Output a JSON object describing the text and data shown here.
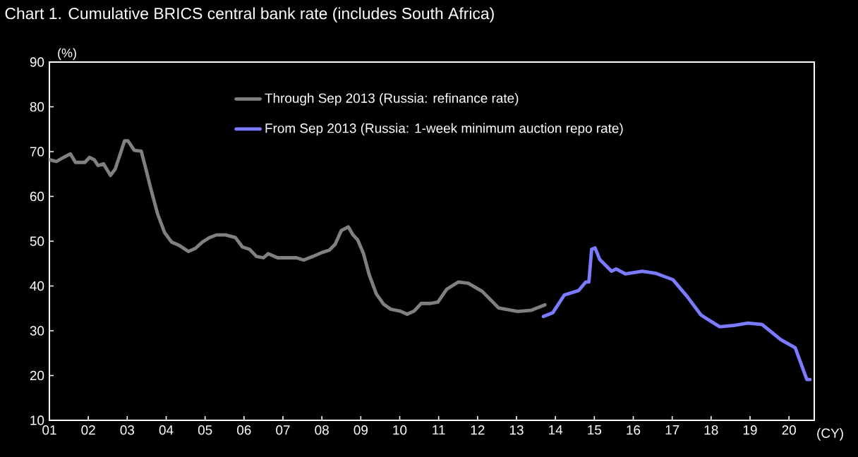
{
  "chart_data": {
    "type": "line",
    "title": "Chart 1. Cumulative BRICS central bank rate (includes South Africa)",
    "xlabel": "(CY)",
    "ylabel": "(%)",
    "xlim": [
      2001,
      2020.65
    ],
    "ylim": [
      10,
      90
    ],
    "xticks": [
      {
        "value": 2001,
        "label": "01"
      },
      {
        "value": 2002,
        "label": "02"
      },
      {
        "value": 2003,
        "label": "03"
      },
      {
        "value": 2004,
        "label": "04"
      },
      {
        "value": 2005,
        "label": "05"
      },
      {
        "value": 2006,
        "label": "06"
      },
      {
        "value": 2007,
        "label": "07"
      },
      {
        "value": 2008,
        "label": "08"
      },
      {
        "value": 2009,
        "label": "09"
      },
      {
        "value": 2010,
        "label": "10"
      },
      {
        "value": 2011,
        "label": "11"
      },
      {
        "value": 2012,
        "label": "12"
      },
      {
        "value": 2013,
        "label": "13"
      },
      {
        "value": 2014,
        "label": "14"
      },
      {
        "value": 2015,
        "label": "15"
      },
      {
        "value": 2016,
        "label": "16"
      },
      {
        "value": 2017,
        "label": "17"
      },
      {
        "value": 2018,
        "label": "18"
      },
      {
        "value": 2019,
        "label": "19"
      },
      {
        "value": 2020,
        "label": "20"
      }
    ],
    "yticks": [
      10,
      20,
      30,
      40,
      50,
      60,
      70,
      80,
      90
    ],
    "legend": "top",
    "grid": false,
    "marker": "none",
    "line_style": "solid",
    "series": [
      {
        "name": "Through Sep 2013 (Russia: refinance rate)",
        "color": "#808080",
        "x": [
          2001.0,
          2001.18,
          2001.36,
          2001.54,
          2001.67,
          2001.91,
          2002.03,
          2002.15,
          2002.25,
          2002.39,
          2002.57,
          2002.69,
          2002.81,
          2002.93,
          2003.02,
          2003.18,
          2003.36,
          2003.48,
          2003.6,
          2003.78,
          2003.96,
          2004.14,
          2004.33,
          2004.57,
          2004.75,
          2004.93,
          2005.11,
          2005.29,
          2005.53,
          2005.78,
          2005.96,
          2006.14,
          2006.32,
          2006.5,
          2006.62,
          2006.86,
          2007.11,
          2007.35,
          2007.53,
          2007.77,
          2008.01,
          2008.19,
          2008.34,
          2008.5,
          2008.68,
          2008.8,
          2008.92,
          2009.07,
          2009.22,
          2009.4,
          2009.59,
          2009.77,
          2010.01,
          2010.19,
          2010.37,
          2010.55,
          2010.79,
          2010.98,
          2011.21,
          2011.51,
          2011.76,
          2012.12,
          2012.54,
          2013.03,
          2013.39,
          2013.73
        ],
        "values": [
          68.2,
          67.8,
          68.7,
          69.5,
          67.6,
          67.6,
          68.7,
          68.2,
          66.9,
          67.3,
          64.7,
          66.1,
          69.2,
          72.4,
          72.4,
          70.3,
          70.1,
          66.1,
          61.9,
          56.1,
          51.9,
          49.8,
          49.1,
          47.7,
          48.4,
          49.8,
          50.8,
          51.4,
          51.4,
          50.8,
          48.7,
          48.2,
          46.6,
          46.3,
          47.2,
          46.3,
          46.3,
          46.3,
          45.8,
          46.6,
          47.5,
          48.0,
          49.3,
          52.4,
          53.2,
          51.4,
          50.3,
          47.2,
          42.4,
          38.2,
          35.9,
          34.8,
          34.4,
          33.7,
          34.4,
          36.1,
          36.1,
          36.4,
          39.3,
          40.9,
          40.6,
          38.8,
          35.1,
          34.3,
          34.6,
          35.8
        ]
      },
      {
        "name": "From Sep 2013 (Russia: 1-week minimum auction repo rate)",
        "color": "#7b7bff",
        "x": [
          2013.69,
          2013.93,
          2014.23,
          2014.6,
          2014.78,
          2014.86,
          2014.93,
          2015.02,
          2015.14,
          2015.44,
          2015.56,
          2015.8,
          2016.23,
          2016.59,
          2017.02,
          2017.38,
          2017.74,
          2018.22,
          2018.59,
          2018.95,
          2019.31,
          2019.79,
          2020.16,
          2020.46,
          2020.54
        ],
        "values": [
          33.2,
          34.0,
          38.0,
          39.0,
          40.9,
          40.9,
          48.2,
          48.5,
          45.9,
          43.3,
          43.8,
          42.7,
          43.3,
          42.8,
          41.4,
          37.7,
          33.5,
          30.9,
          31.2,
          31.7,
          31.4,
          28.0,
          26.2,
          19.1,
          19.1
        ]
      }
    ]
  }
}
